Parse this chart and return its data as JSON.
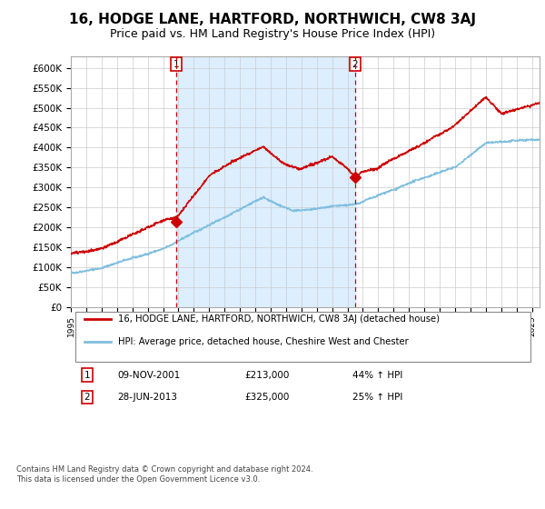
{
  "title": "16, HODGE LANE, HARTFORD, NORTHWICH, CW8 3AJ",
  "subtitle": "Price paid vs. HM Land Registry's House Price Index (HPI)",
  "title_fontsize": 11,
  "subtitle_fontsize": 9,
  "ylabel_ticks": [
    "£0",
    "£50K",
    "£100K",
    "£150K",
    "£200K",
    "£250K",
    "£300K",
    "£350K",
    "£400K",
    "£450K",
    "£500K",
    "£550K",
    "£600K"
  ],
  "ytick_values": [
    0,
    50000,
    100000,
    150000,
    200000,
    250000,
    300000,
    350000,
    400000,
    450000,
    500000,
    550000,
    600000
  ],
  "ylim": [
    0,
    630000
  ],
  "sale1_date": 2001.86,
  "sale1_price": 213000,
  "sale1_label": "1",
  "sale2_date": 2013.49,
  "sale2_price": 325000,
  "sale2_label": "2",
  "hpi_color": "#7fbfdf",
  "price_color": "#cc0000",
  "vline_color": "#cc0000",
  "shade_color": "#ddeeff",
  "legend_line1": "16, HODGE LANE, HARTFORD, NORTHWICH, CW8 3AJ (detached house)",
  "legend_line2": "HPI: Average price, detached house, Cheshire West and Chester",
  "table_rows": [
    {
      "num": "1",
      "date": "09-NOV-2001",
      "price": "£213,000",
      "hpi": "44% ↑ HPI"
    },
    {
      "num": "2",
      "date": "28-JUN-2013",
      "price": "£325,000",
      "hpi": "25% ↑ HPI"
    }
  ],
  "footer": "Contains HM Land Registry data © Crown copyright and database right 2024.\nThis data is licensed under the Open Government Licence v3.0.",
  "xmin": 1995.0,
  "xmax": 2025.5
}
